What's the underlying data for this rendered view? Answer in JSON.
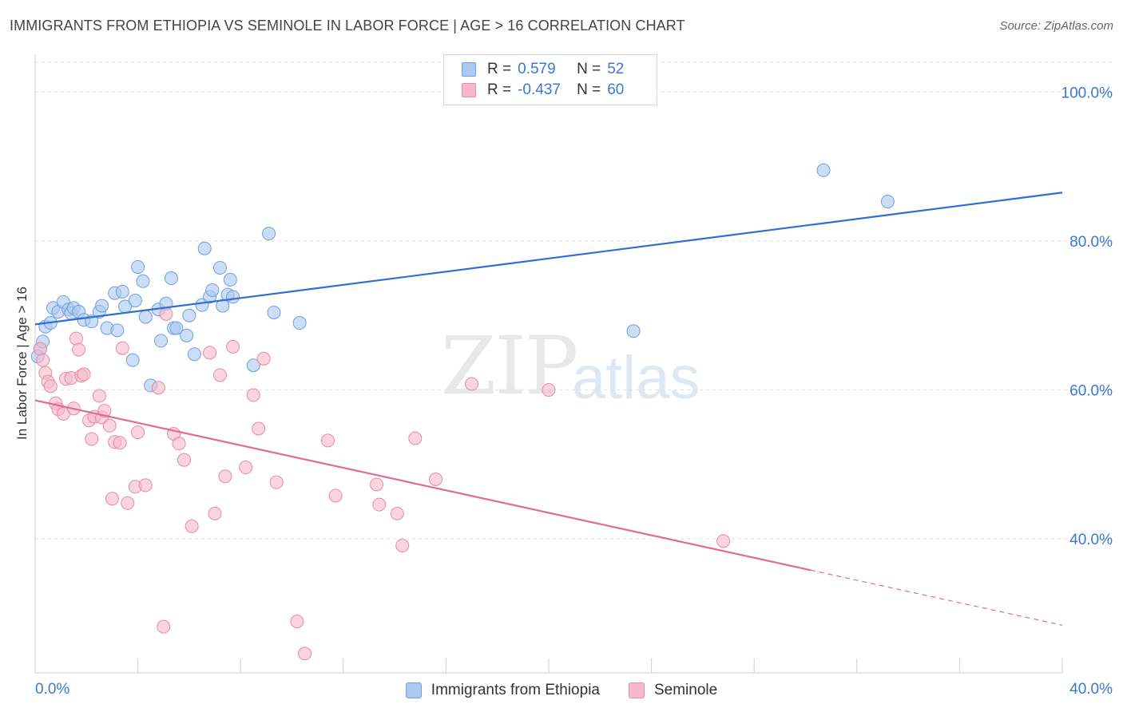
{
  "header": {
    "title": "IMMIGRANTS FROM ETHIOPIA VS SEMINOLE IN LABOR FORCE | AGE > 16 CORRELATION CHART",
    "source": "Source: ZipAtlas.com"
  },
  "watermark": {
    "zip": "ZIP",
    "atlas": "atlas"
  },
  "legend_top": {
    "rows": [
      {
        "r_label": "R =",
        "r_value": "0.579",
        "n_label": "N =",
        "n_value": "52",
        "color": "#aac8f0"
      },
      {
        "r_label": "R =",
        "r_value": "-0.437",
        "n_label": "N =",
        "n_value": "60",
        "color": "#f6b8ca"
      }
    ]
  },
  "chart_data": {
    "type": "scatter",
    "title": "IMMIGRANTS FROM ETHIOPIA VS SEMINOLE IN LABOR FORCE | AGE > 16 CORRELATION CHART",
    "xlabel": "",
    "ylabel": "In Labor Force | Age > 16",
    "xlim": [
      0,
      40
    ],
    "ylim": [
      22,
      104
    ],
    "x_tick_labels": [
      "0.0%",
      "40.0%"
    ],
    "y_ticks": [
      40,
      60,
      80,
      100
    ],
    "y_tick_labels": [
      "40.0%",
      "60.0%",
      "80.0%",
      "100.0%"
    ],
    "grid": true,
    "legend_position": "bottom",
    "series": [
      {
        "name": "Immigrants from Ethiopia",
        "color": "#aac8f0",
        "edge": "#6f9fdc",
        "line_color": "#2f6fd0",
        "trend": {
          "x0": 0,
          "y0": 68.8,
          "x1": 40,
          "y1": 86.5,
          "dashed_from": null
        },
        "points": [
          [
            0.2,
            65.5
          ],
          [
            0.3,
            66.5
          ],
          [
            0.4,
            68.5
          ],
          [
            0.6,
            69.0
          ],
          [
            0.7,
            71.0
          ],
          [
            0.9,
            70.5
          ],
          [
            1.1,
            71.8
          ],
          [
            1.3,
            70.8
          ],
          [
            1.4,
            70.3
          ],
          [
            1.5,
            71.0
          ],
          [
            1.7,
            70.5
          ],
          [
            1.9,
            69.4
          ],
          [
            2.2,
            69.2
          ],
          [
            2.5,
            70.5
          ],
          [
            2.6,
            71.3
          ],
          [
            2.8,
            68.3
          ],
          [
            3.1,
            73.0
          ],
          [
            3.2,
            68.0
          ],
          [
            3.4,
            73.2
          ],
          [
            3.5,
            71.2
          ],
          [
            3.8,
            64.0
          ],
          [
            3.9,
            72.0
          ],
          [
            4.0,
            76.5
          ],
          [
            4.2,
            74.6
          ],
          [
            4.3,
            69.8
          ],
          [
            4.5,
            60.6
          ],
          [
            4.8,
            70.8
          ],
          [
            4.9,
            66.6
          ],
          [
            5.1,
            71.6
          ],
          [
            5.3,
            75.0
          ],
          [
            5.4,
            68.3
          ],
          [
            5.5,
            68.3
          ],
          [
            5.9,
            67.3
          ],
          [
            6.0,
            70.0
          ],
          [
            6.2,
            64.8
          ],
          [
            6.5,
            71.4
          ],
          [
            6.6,
            79.0
          ],
          [
            6.8,
            72.5
          ],
          [
            6.9,
            73.4
          ],
          [
            7.2,
            76.4
          ],
          [
            7.3,
            71.3
          ],
          [
            7.5,
            72.8
          ],
          [
            7.6,
            74.8
          ],
          [
            7.7,
            72.5
          ],
          [
            8.5,
            63.3
          ],
          [
            9.1,
            81.0
          ],
          [
            9.3,
            70.4
          ],
          [
            10.3,
            69.0
          ],
          [
            23.3,
            67.9
          ],
          [
            30.7,
            89.5
          ],
          [
            33.2,
            85.3
          ],
          [
            0.1,
            64.5
          ]
        ]
      },
      {
        "name": "Seminole",
        "color": "#f6b8ca",
        "edge": "#e88aa8",
        "line_color": "#e26a98",
        "trend": {
          "x0": 0,
          "y0": 58.6,
          "x1": 40,
          "y1": 28.4,
          "dashed_from": 30.2
        },
        "points": [
          [
            0.2,
            65.5
          ],
          [
            0.3,
            64.0
          ],
          [
            0.4,
            62.3
          ],
          [
            0.5,
            61.1
          ],
          [
            0.6,
            60.5
          ],
          [
            0.8,
            58.2
          ],
          [
            0.9,
            57.4
          ],
          [
            1.1,
            56.8
          ],
          [
            1.2,
            61.5
          ],
          [
            1.4,
            61.6
          ],
          [
            1.5,
            57.5
          ],
          [
            1.6,
            66.9
          ],
          [
            1.7,
            65.4
          ],
          [
            1.8,
            61.9
          ],
          [
            1.9,
            62.1
          ],
          [
            2.1,
            55.9
          ],
          [
            2.2,
            53.4
          ],
          [
            2.3,
            56.4
          ],
          [
            2.5,
            59.2
          ],
          [
            2.6,
            56.3
          ],
          [
            2.7,
            57.2
          ],
          [
            2.9,
            55.2
          ],
          [
            3.0,
            45.4
          ],
          [
            3.1,
            53.0
          ],
          [
            3.3,
            52.9
          ],
          [
            3.4,
            65.6
          ],
          [
            3.6,
            44.8
          ],
          [
            3.9,
            47.0
          ],
          [
            4.0,
            54.3
          ],
          [
            4.3,
            47.2
          ],
          [
            4.8,
            60.3
          ],
          [
            5.0,
            28.2
          ],
          [
            5.1,
            70.2
          ],
          [
            5.4,
            54.1
          ],
          [
            5.6,
            52.8
          ],
          [
            5.8,
            50.6
          ],
          [
            6.1,
            41.7
          ],
          [
            6.8,
            65.0
          ],
          [
            7.0,
            43.4
          ],
          [
            7.2,
            62.0
          ],
          [
            7.4,
            48.4
          ],
          [
            7.7,
            65.8
          ],
          [
            8.2,
            49.6
          ],
          [
            8.5,
            59.3
          ],
          [
            8.7,
            54.8
          ],
          [
            8.9,
            64.2
          ],
          [
            9.4,
            47.6
          ],
          [
            10.2,
            28.9
          ],
          [
            10.5,
            24.6
          ],
          [
            11.4,
            53.2
          ],
          [
            11.7,
            45.8
          ],
          [
            13.3,
            47.3
          ],
          [
            13.4,
            44.6
          ],
          [
            14.1,
            43.4
          ],
          [
            14.8,
            53.5
          ],
          [
            15.6,
            48.0
          ],
          [
            17.0,
            60.8
          ],
          [
            20.0,
            60.0
          ],
          [
            26.8,
            39.7
          ],
          [
            14.3,
            39.1
          ]
        ]
      }
    ]
  }
}
